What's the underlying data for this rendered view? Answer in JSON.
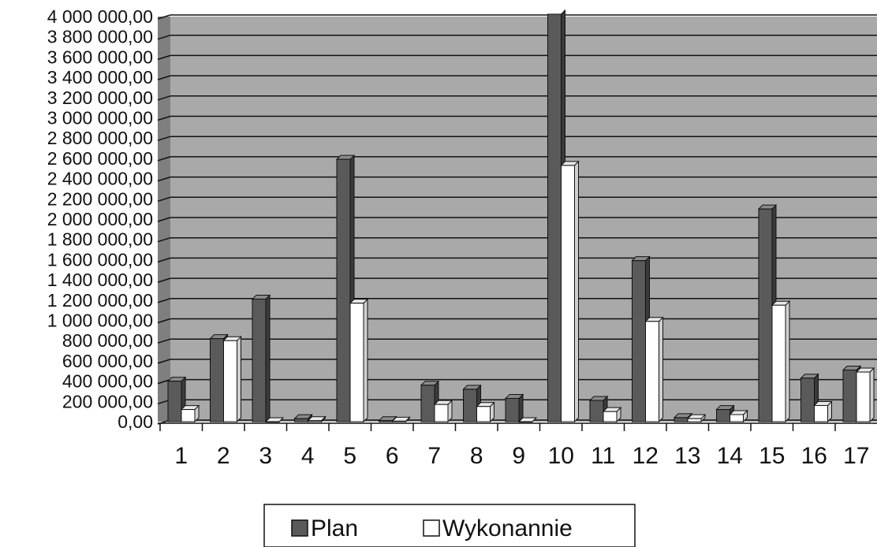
{
  "chart_data": {
    "type": "bar",
    "title": "",
    "xlabel": "",
    "ylabel": "",
    "categories": [
      "1",
      "2",
      "3",
      "4",
      "5",
      "6",
      "7",
      "8",
      "9",
      "10",
      "11",
      "12",
      "13",
      "14",
      "15",
      "16",
      "17"
    ],
    "series": [
      {
        "name": "Plan",
        "values": [
          400000,
          820000,
          1210000,
          30000,
          2590000,
          10000,
          360000,
          320000,
          230000,
          4050000,
          210000,
          1590000,
          40000,
          120000,
          2100000,
          430000,
          510000
        ]
      },
      {
        "name": "Wykonannie",
        "values": [
          120000,
          800000,
          0,
          10000,
          1170000,
          5000,
          170000,
          150000,
          0,
          2530000,
          100000,
          990000,
          30000,
          70000,
          1150000,
          160000,
          490000
        ]
      }
    ],
    "ylim": [
      0,
      4000000
    ],
    "yticks": [
      "0,00",
      "200 000,00",
      "400 000,00",
      "600 000,00",
      "800 000,00",
      "1 000 000,00",
      "1 200 000,00",
      "1 400 000,00",
      "1 600 000,00",
      "1 800 000,00",
      "2 000 000,00",
      "2 200 000,00",
      "2 400 000,00",
      "2 600 000,00",
      "2 800 000,00",
      "3 000 000,00",
      "3 200 000,00",
      "3 400 000,00",
      "3 600 000,00",
      "3 800 000,00",
      "4 000 000,00"
    ],
    "grid": true,
    "legend_position": "bottom",
    "colors": {
      "plot_background": "#a9a9a9",
      "gridline": "#111111",
      "plan_front": "#5a5a5a",
      "plan_side": "#3a3a3a",
      "plan_top": "#8a8a8a",
      "wyk_front": "#ffffff",
      "wyk_side": "#d0d0d0",
      "wyk_top": "#e8e8e8",
      "wall": "#7f7f7f"
    }
  }
}
